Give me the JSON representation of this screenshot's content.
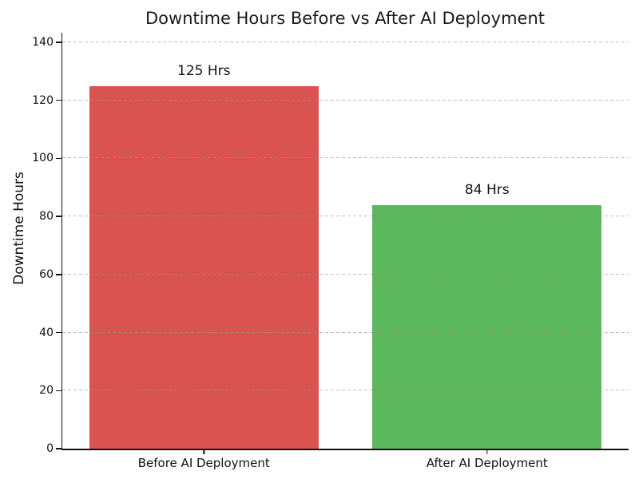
{
  "chart_data": {
    "type": "bar",
    "title": "Downtime Hours Before vs After AI Deployment",
    "ylabel": "Downtime Hours",
    "xlabel": "",
    "categories": [
      "Before AI Deployment",
      "After AI Deployment"
    ],
    "values": [
      125,
      84
    ],
    "bar_labels": [
      "125 Hrs",
      "84 Hrs"
    ],
    "bar_colors": [
      "#d9534f",
      "#5cb85c"
    ],
    "yticks": [
      0,
      20,
      40,
      60,
      80,
      100,
      120,
      140
    ],
    "ylim": [
      0,
      143.3
    ],
    "bar_width_fraction": 0.81,
    "grid": {
      "axis": "y",
      "style": "dashed",
      "drawn_over_bars": true
    },
    "legend": "none"
  }
}
